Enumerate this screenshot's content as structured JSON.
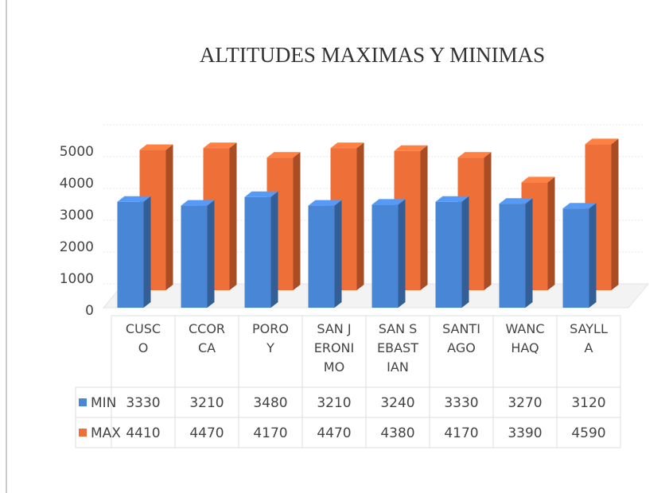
{
  "chart_data": {
    "type": "bar3d",
    "title": "ALTITUDES MAXIMAS Y MINIMAS",
    "categories": [
      "CUSCO",
      "CCORCA",
      "POROY",
      "SAN JERONIMO",
      "SAN SEBASTIAN",
      "SANTIAGO",
      "WANCHAQ",
      "SAYLLA"
    ],
    "series": [
      {
        "name": "MIN",
        "color": "#4a86d6",
        "values": [
          3330,
          3210,
          3480,
          3210,
          3240,
          3330,
          3270,
          3120
        ]
      },
      {
        "name": "MAX",
        "color": "#ef6f38",
        "values": [
          4410,
          4470,
          4170,
          4470,
          4380,
          4170,
          3390,
          4590
        ]
      }
    ],
    "ylim": [
      0,
      5000
    ],
    "yticks": [
      0,
      1000,
      2000,
      3000,
      4000,
      5000
    ],
    "grid": true,
    "data_table": true
  }
}
